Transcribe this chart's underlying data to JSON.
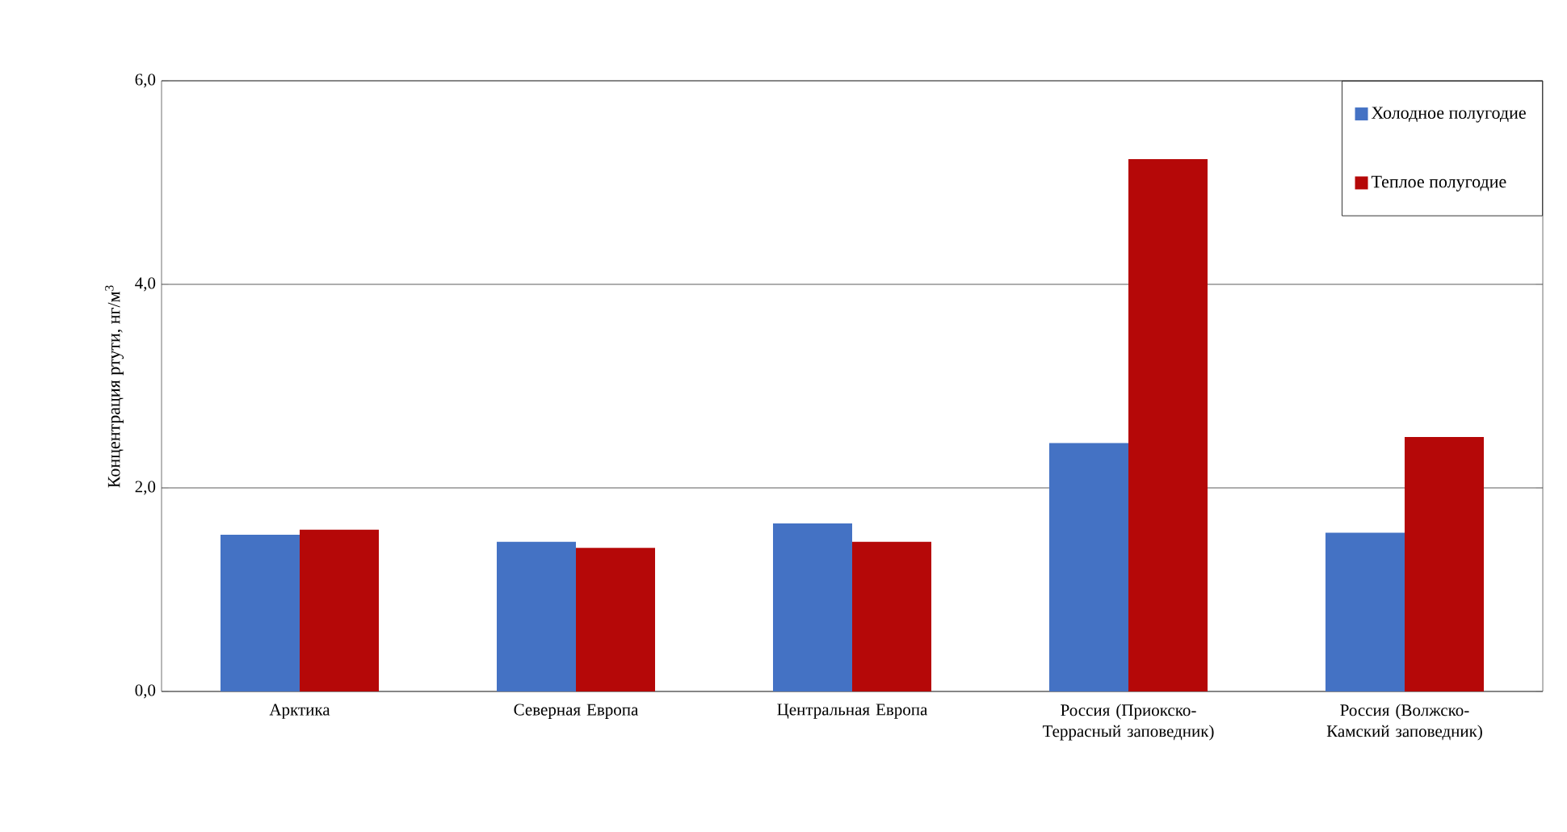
{
  "chart_data": {
    "type": "bar",
    "ylabel": "Концентрация  ртути, нг/м$^{3}$",
    "categories": [
      "Арктика",
      "Северная  Европа",
      "Центральная Европа",
      "Россия (Приокско-Террасный заповедник)",
      "Россия (Волжско-Камский заповедник)"
    ],
    "series": [
      {
        "name": "Холодное полугодие",
        "color": "#4472c4",
        "values": [
          1.54,
          1.47,
          1.65,
          2.44,
          1.56
        ]
      },
      {
        "name": "Теплое полугодие",
        "color": "#b50808",
        "values": [
          1.59,
          1.41,
          1.47,
          5.23,
          2.5
        ]
      }
    ],
    "ylim": [
      0,
      6
    ],
    "yticks": [
      {
        "value": 0,
        "label": "0,0"
      },
      {
        "value": 2,
        "label": "2,0"
      },
      {
        "value": 4,
        "label": "4,0"
      },
      {
        "value": 6,
        "label": "6,0"
      }
    ],
    "grid": "y",
    "legend": "top right"
  }
}
